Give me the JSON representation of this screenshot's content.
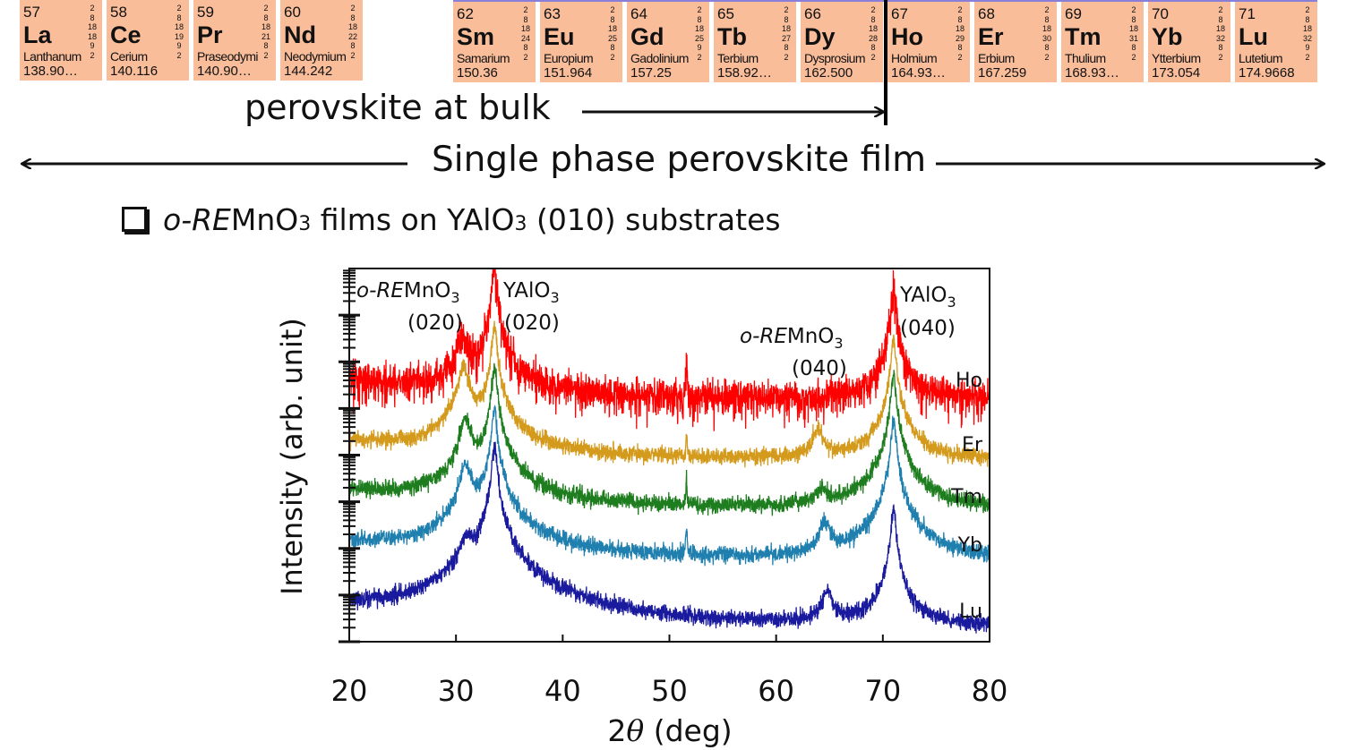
{
  "periodic_table": {
    "group_left": [
      {
        "number": "57",
        "symbol": "La",
        "name": "Lanthanum",
        "weight": "138.90…",
        "shells": [
          "2",
          "8",
          "18",
          "18",
          "9",
          "2"
        ]
      },
      {
        "number": "58",
        "symbol": "Ce",
        "name": "Cerium",
        "weight": "140.116",
        "shells": [
          "2",
          "8",
          "18",
          "19",
          "9",
          "2"
        ]
      },
      {
        "number": "59",
        "symbol": "Pr",
        "name": "Praseodymi",
        "weight": "140.90…",
        "shells": [
          "2",
          "8",
          "18",
          "21",
          "8",
          "2"
        ]
      },
      {
        "number": "60",
        "symbol": "Nd",
        "name": "Neodymium",
        "weight": "144.242",
        "shells": [
          "2",
          "8",
          "18",
          "22",
          "8",
          "2"
        ]
      }
    ],
    "group_right": [
      {
        "number": "62",
        "symbol": "Sm",
        "name": "Samarium",
        "weight": "150.36",
        "shells": [
          "2",
          "8",
          "18",
          "24",
          "8",
          "2"
        ]
      },
      {
        "number": "63",
        "symbol": "Eu",
        "name": "Europium",
        "weight": "151.964",
        "shells": [
          "2",
          "8",
          "18",
          "25",
          "8",
          "2"
        ]
      },
      {
        "number": "64",
        "symbol": "Gd",
        "name": "Gadolinium",
        "weight": "157.25",
        "shells": [
          "2",
          "8",
          "18",
          "25",
          "9",
          "2"
        ]
      },
      {
        "number": "65",
        "symbol": "Tb",
        "name": "Terbium",
        "weight": "158.92…",
        "shells": [
          "2",
          "8",
          "18",
          "27",
          "8",
          "2"
        ]
      },
      {
        "number": "66",
        "symbol": "Dy",
        "name": "Dysprosium",
        "weight": "162.500",
        "shells": [
          "2",
          "8",
          "18",
          "28",
          "8",
          "2"
        ]
      },
      {
        "number": "67",
        "symbol": "Ho",
        "name": "Holmium",
        "weight": "164.93…",
        "shells": [
          "2",
          "8",
          "18",
          "29",
          "8",
          "2"
        ]
      },
      {
        "number": "68",
        "symbol": "Er",
        "name": "Erbium",
        "weight": "167.259",
        "shells": [
          "2",
          "8",
          "18",
          "30",
          "8",
          "2"
        ]
      },
      {
        "number": "69",
        "symbol": "Tm",
        "name": "Thulium",
        "weight": "168.93…",
        "shells": [
          "2",
          "8",
          "18",
          "31",
          "8",
          "2"
        ]
      },
      {
        "number": "70",
        "symbol": "Yb",
        "name": "Ytterbium",
        "weight": "173.054",
        "shells": [
          "2",
          "8",
          "18",
          "32",
          "8",
          "2"
        ]
      },
      {
        "number": "71",
        "symbol": "Lu",
        "name": "Lutetium",
        "weight": "174.9668",
        "shells": [
          "2",
          "8",
          "18",
          "32",
          "9",
          "2"
        ]
      }
    ],
    "tile_color": "#f9bd9a"
  },
  "annotations": {
    "bulk": "perovskite at bulk",
    "single_phase": "Single phase perovskite film"
  },
  "subtitle": {
    "a": "o-RE",
    "b": "MnO",
    "c": "3",
    "d": " films on YAlO",
    "e": "3",
    "f": " (010) substrates"
  },
  "chart_data": {
    "type": "line",
    "xlabel": {
      "a": "2",
      "b": "θ",
      "c": " (deg)"
    },
    "ylabel": "Intensity (arb. unit)",
    "xlim": [
      20,
      80
    ],
    "xticks": [
      20,
      30,
      40,
      50,
      60,
      70,
      80
    ],
    "yscale": "log",
    "ylim": [
      1,
      100000000
    ],
    "y_tick_labels": false,
    "grid": false,
    "series": [
      {
        "name": "Ho",
        "color": "#ff0000",
        "baseline": 160000,
        "peaks": [
          {
            "x": 30.6,
            "y": 3600000
          },
          {
            "x": 33.6,
            "y": 100000000
          },
          {
            "x": 51.6,
            "y": 900000
          },
          {
            "x": 63.8,
            "y": 150000
          },
          {
            "x": 71.0,
            "y": 38000000
          }
        ]
      },
      {
        "name": "Er",
        "color": "#d49a1c",
        "baseline": 7600,
        "peaks": [
          {
            "x": 30.7,
            "y": 780000
          },
          {
            "x": 33.6,
            "y": 5700000
          },
          {
            "x": 51.6,
            "y": 25000
          },
          {
            "x": 63.9,
            "y": 35000
          },
          {
            "x": 71.0,
            "y": 3000000
          }
        ]
      },
      {
        "name": "Tm",
        "color": "#1e7d1e",
        "baseline": 660,
        "peaks": [
          {
            "x": 30.9,
            "y": 55000
          },
          {
            "x": 33.6,
            "y": 790000
          },
          {
            "x": 51.6,
            "y": 2500
          },
          {
            "x": 64.3,
            "y": 1700
          },
          {
            "x": 71.0,
            "y": 500000
          }
        ]
      },
      {
        "name": "Yb",
        "color": "#1f7fae",
        "baseline": 51,
        "peaks": [
          {
            "x": 30.9,
            "y": 6000
          },
          {
            "x": 33.6,
            "y": 100000
          },
          {
            "x": 51.6,
            "y": 300
          },
          {
            "x": 64.6,
            "y": 340
          },
          {
            "x": 71.0,
            "y": 55000
          }
        ]
      },
      {
        "name": "Lu",
        "color": "#1a1a9e",
        "baseline": 1.9,
        "peaks": [
          {
            "x": 31.0,
            "y": 155
          },
          {
            "x": 33.6,
            "y": 15000
          },
          {
            "x": 64.8,
            "y": 11
          },
          {
            "x": 71.0,
            "y": 660
          }
        ]
      }
    ],
    "peak_labels": [
      {
        "parts": [
          {
            "t": "o-",
            "i": true
          },
          {
            "t": "RE",
            "i": true
          },
          {
            "t": "MnO"
          },
          {
            "t": "3",
            "s": true
          }
        ],
        "hkl": "(020)"
      },
      {
        "parts": [
          {
            "t": "YAlO"
          },
          {
            "t": "3",
            "s": true
          }
        ],
        "hkl": "(020)"
      },
      {
        "parts": [
          {
            "t": "o-",
            "i": true
          },
          {
            "t": "RE",
            "i": true
          },
          {
            "t": "MnO"
          },
          {
            "t": "3",
            "s": true
          }
        ],
        "hkl": "(040)"
      },
      {
        "parts": [
          {
            "t": "YAlO"
          },
          {
            "t": "3",
            "s": true
          }
        ],
        "hkl": "(040)"
      }
    ]
  }
}
